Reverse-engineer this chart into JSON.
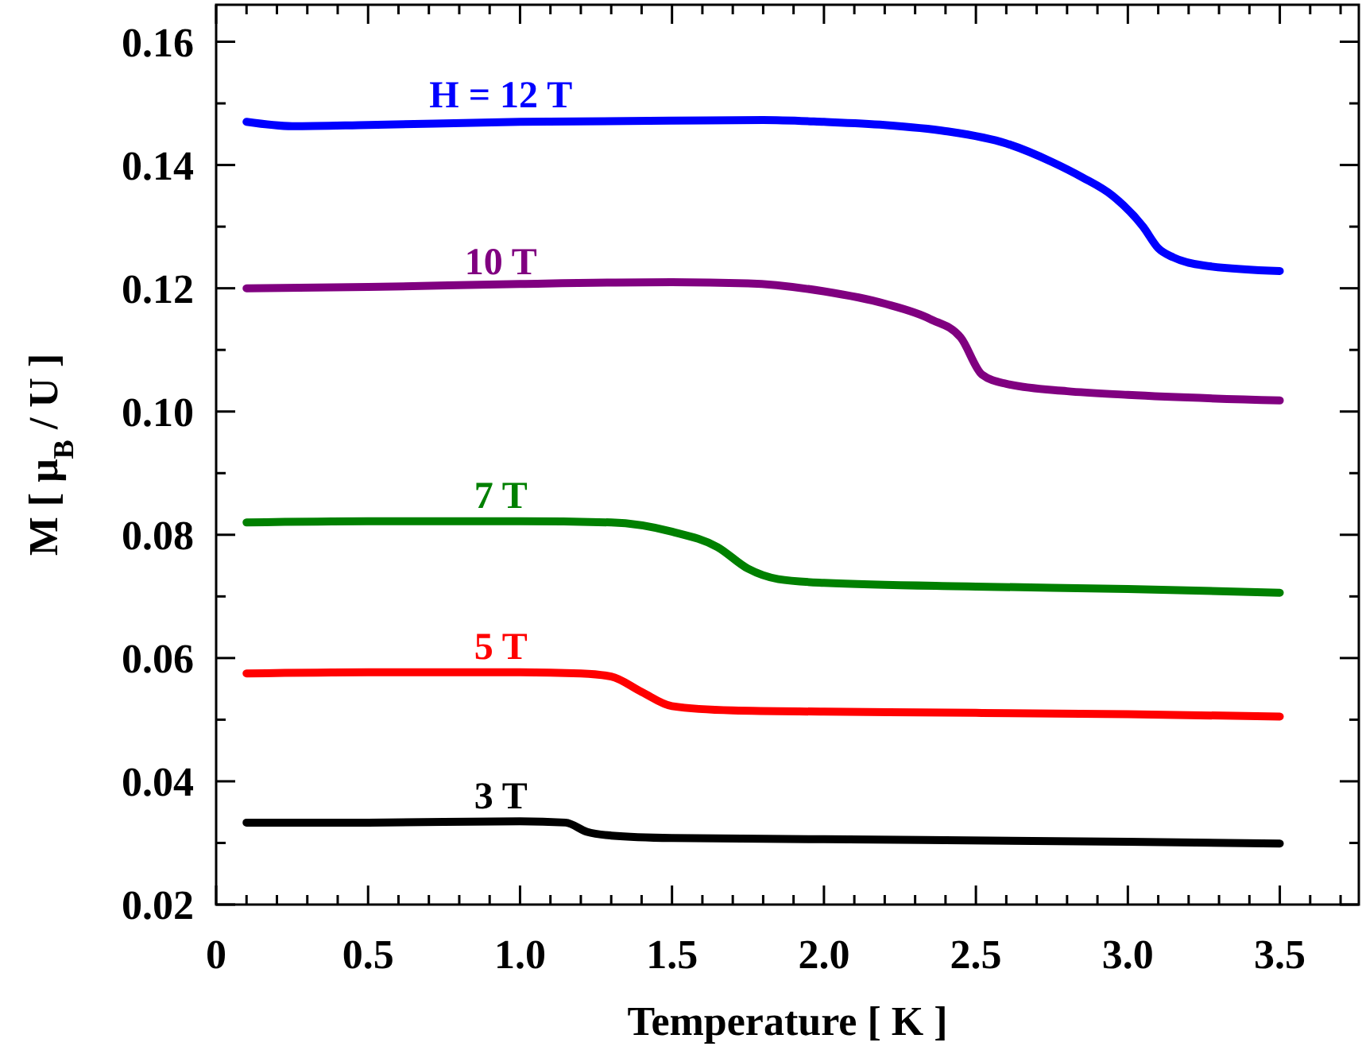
{
  "chart_data": {
    "type": "line",
    "xlabel": "Temperature [ K ]",
    "ylabel": "M [ μ$_{B}$ / U ]",
    "xlim": [
      0,
      3.76
    ],
    "ylim": [
      0.02,
      0.166
    ],
    "xticks": [
      0,
      0.5,
      {
        "value": 1,
        "label": "1.0"
      },
      1.5,
      {
        "value": 2,
        "label": "2.0"
      },
      2.5,
      {
        "value": 3,
        "label": "3.0"
      },
      3.5,
      {
        "value": 0.1,
        "label": null
      },
      {
        "value": 0.2,
        "label": null
      },
      {
        "value": 0.3,
        "label": null
      },
      {
        "value": 0.4,
        "label": null
      },
      {
        "value": 0.6,
        "label": null
      },
      {
        "value": 0.7,
        "label": null
      },
      {
        "value": 0.8,
        "label": null
      },
      {
        "value": 0.9,
        "label": null
      },
      {
        "value": 1.1,
        "label": null
      },
      {
        "value": 1.2,
        "label": null
      },
      {
        "value": 1.3,
        "label": null
      },
      {
        "value": 1.4,
        "label": null
      },
      {
        "value": 1.6,
        "label": null
      },
      {
        "value": 1.7,
        "label": null
      },
      {
        "value": 1.8,
        "label": null
      },
      {
        "value": 1.9,
        "label": null
      },
      {
        "value": 2.1,
        "label": null
      },
      {
        "value": 2.2,
        "label": null
      },
      {
        "value": 2.3,
        "label": null
      },
      {
        "value": 2.4,
        "label": null
      },
      {
        "value": 2.6,
        "label": null
      },
      {
        "value": 2.7,
        "label": null
      },
      {
        "value": 2.8,
        "label": null
      },
      {
        "value": 2.9,
        "label": null
      },
      {
        "value": 3.1,
        "label": null
      },
      {
        "value": 3.2,
        "label": null
      },
      {
        "value": 3.3,
        "label": null
      },
      {
        "value": 3.4,
        "label": null
      },
      {
        "value": 3.6,
        "label": null
      },
      {
        "value": 3.7,
        "label": null
      }
    ],
    "yticks": [
      0.02,
      0.04,
      0.06,
      0.08,
      {
        "value": 0.1,
        "label": "0.10"
      },
      0.12,
      0.14,
      0.16,
      {
        "value": 0.03,
        "label": null
      },
      {
        "value": 0.05,
        "label": null
      },
      {
        "value": 0.07,
        "label": null
      },
      {
        "value": 0.09,
        "label": null
      },
      {
        "value": 0.11,
        "label": null
      },
      {
        "value": 0.13,
        "label": null
      },
      {
        "value": 0.15,
        "label": null
      }
    ],
    "grid": false,
    "marker": "none",
    "line_style": "solid",
    "series": [
      {
        "name": "H = 12 T",
        "color": "#0000ff",
        "x": [
          0.1,
          0.25,
          0.5,
          1.0,
          1.5,
          1.8,
          2.0,
          2.2,
          2.4,
          2.6,
          2.75,
          2.85,
          2.95,
          3.05,
          3.1,
          3.15,
          3.25,
          3.5
        ],
        "values": [
          0.147,
          0.1463,
          0.1465,
          0.147,
          0.1472,
          0.1473,
          0.147,
          0.1465,
          0.1455,
          0.1435,
          0.1405,
          0.138,
          0.135,
          0.13,
          0.1265,
          0.125,
          0.1237,
          0.1228
        ]
      },
      {
        "name": "10 T",
        "color": "#800080",
        "x": [
          0.1,
          0.5,
          1.0,
          1.5,
          1.75,
          2.0,
          2.2,
          2.35,
          2.45,
          2.52,
          2.6,
          2.8,
          3.0,
          3.5
        ],
        "values": [
          0.12,
          0.1202,
          0.1207,
          0.121,
          0.1208,
          0.1195,
          0.1175,
          0.115,
          0.112,
          0.106,
          0.1045,
          0.1033,
          0.1027,
          0.1018
        ]
      },
      {
        "name": "7 T",
        "color": "#008000",
        "x": [
          0.1,
          0.5,
          1.0,
          1.3,
          1.5,
          1.65,
          1.75,
          1.85,
          2.0,
          2.5,
          3.0,
          3.5
        ],
        "values": [
          0.082,
          0.0822,
          0.0822,
          0.082,
          0.0805,
          0.078,
          0.0745,
          0.0728,
          0.0722,
          0.0716,
          0.0712,
          0.0706
        ]
      },
      {
        "name": "5 T",
        "color": "#ff0000",
        "x": [
          0.1,
          0.5,
          1.0,
          1.2,
          1.3,
          1.4,
          1.5,
          1.7,
          2.0,
          2.5,
          3.0,
          3.5
        ],
        "values": [
          0.0575,
          0.0577,
          0.0577,
          0.0575,
          0.057,
          0.0545,
          0.0522,
          0.0515,
          0.0513,
          0.0511,
          0.0509,
          0.0505
        ]
      },
      {
        "name": "3 T",
        "color": "#000000",
        "x": [
          0.1,
          0.5,
          1.0,
          1.15,
          1.22,
          1.3,
          1.5,
          2.0,
          3.0,
          3.5
        ],
        "values": [
          0.0333,
          0.0333,
          0.0335,
          0.0333,
          0.0318,
          0.0312,
          0.0308,
          0.0306,
          0.0302,
          0.0299
        ]
      }
    ]
  }
}
